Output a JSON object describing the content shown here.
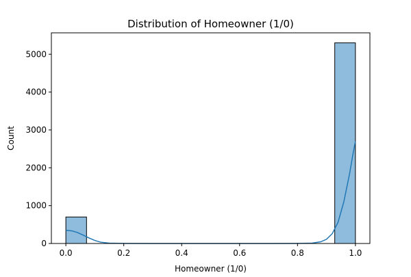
{
  "chart_data": {
    "type": "bar",
    "title": "Distribution of Homeowner (1/0)",
    "xlabel": "Homeowner (1/0)",
    "ylabel": "Count",
    "xlim": [
      -0.05,
      1.05
    ],
    "ylim": [
      0,
      5565
    ],
    "x_ticks": [
      0.0,
      0.2,
      0.4,
      0.6,
      0.8,
      1.0
    ],
    "x_tick_labels": [
      "0.0",
      "0.2",
      "0.4",
      "0.6",
      "0.8",
      "1.0"
    ],
    "y_ticks": [
      0,
      1000,
      2000,
      3000,
      4000,
      5000
    ],
    "y_tick_labels": [
      "0",
      "1000",
      "2000",
      "3000",
      "4000",
      "5000"
    ],
    "bins": [
      {
        "x_start": 0.0,
        "x_end": 0.0714,
        "value": 700
      },
      {
        "x_start": 0.9286,
        "x_end": 1.0,
        "value": 5300
      }
    ],
    "kde": [
      [
        0.0,
        350
      ],
      [
        0.02,
        335
      ],
      [
        0.04,
        290
      ],
      [
        0.06,
        220
      ],
      [
        0.08,
        145
      ],
      [
        0.1,
        80
      ],
      [
        0.12,
        35
      ],
      [
        0.15,
        10
      ],
      [
        0.2,
        2
      ],
      [
        0.3,
        0
      ],
      [
        0.5,
        0
      ],
      [
        0.7,
        0
      ],
      [
        0.8,
        2
      ],
      [
        0.85,
        10
      ],
      [
        0.88,
        45
      ],
      [
        0.9,
        110
      ],
      [
        0.92,
        260
      ],
      [
        0.94,
        560
      ],
      [
        0.96,
        1100
      ],
      [
        0.98,
        1850
      ],
      [
        0.99,
        2300
      ],
      [
        1.0,
        2700
      ]
    ],
    "grid": false,
    "colors": {
      "bar_fill": "#8fbcdd",
      "bar_edge": "#000000",
      "kde_line": "#1f77b4"
    }
  }
}
